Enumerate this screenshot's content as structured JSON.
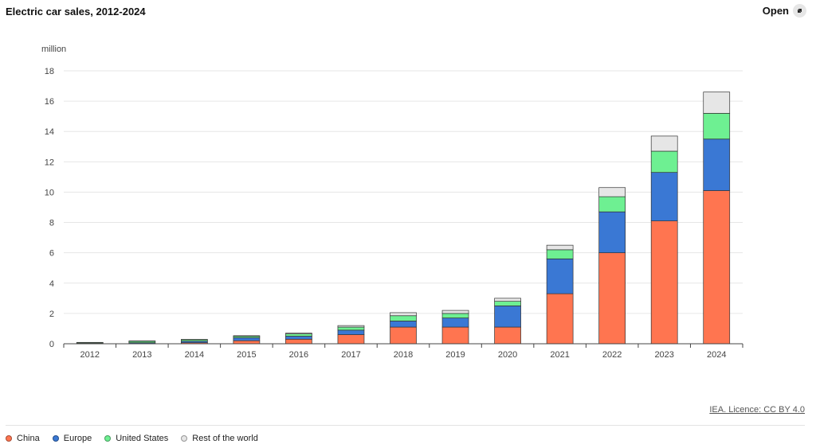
{
  "header": {
    "title": "Electric car sales, 2012-2024",
    "open_label": "Open",
    "open_icon": "external-link-icon"
  },
  "footer": {
    "licence_text": "IEA. Licence: CC BY 4.0"
  },
  "colors": {
    "China": "#ff7550",
    "Europe": "#3a78d4",
    "United States": "#6ef092",
    "Rest of the world": "#e6e6e6"
  },
  "chart_data": {
    "type": "bar",
    "stacked": true,
    "title": "Electric car sales, 2012-2024",
    "unit_label": "million",
    "xlabel": "",
    "ylabel": "",
    "ylim": [
      0,
      18
    ],
    "yticks": [
      0,
      2,
      4,
      6,
      8,
      10,
      12,
      14,
      16,
      18
    ],
    "grid": true,
    "legend_position": "bottom-left",
    "categories": [
      "2012",
      "2013",
      "2014",
      "2015",
      "2016",
      "2017",
      "2018",
      "2019",
      "2020",
      "2021",
      "2022",
      "2023",
      "2024"
    ],
    "series": [
      {
        "name": "China",
        "values": [
          0.01,
          0.02,
          0.07,
          0.2,
          0.3,
          0.6,
          1.1,
          1.1,
          1.1,
          3.3,
          6.0,
          8.1,
          10.1
        ]
      },
      {
        "name": "Europe",
        "values": [
          0.02,
          0.05,
          0.1,
          0.2,
          0.2,
          0.3,
          0.4,
          0.6,
          1.4,
          2.3,
          2.7,
          3.2,
          3.4
        ]
      },
      {
        "name": "United States",
        "values": [
          0.05,
          0.1,
          0.1,
          0.1,
          0.15,
          0.2,
          0.35,
          0.3,
          0.3,
          0.6,
          1.0,
          1.4,
          1.7
        ]
      },
      {
        "name": "Rest of the world",
        "values": [
          0.01,
          0.02,
          0.02,
          0.03,
          0.05,
          0.1,
          0.2,
          0.2,
          0.2,
          0.3,
          0.6,
          1.0,
          1.4
        ]
      }
    ]
  }
}
